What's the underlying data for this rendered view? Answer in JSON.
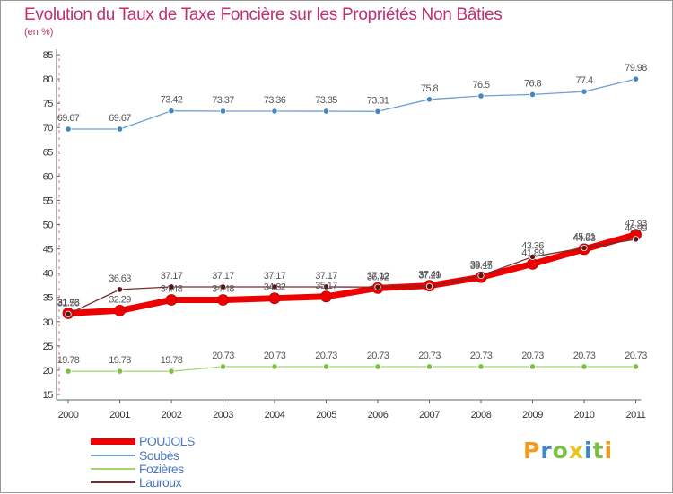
{
  "title": "Evolution du Taux de Taxe Foncière sur les Propriétés Non Bâties",
  "unit": "(en %)",
  "logo": {
    "text": "Proxiti"
  },
  "chart_data": {
    "type": "line",
    "x": [
      "2000",
      "2001",
      "2002",
      "2003",
      "2004",
      "2005",
      "2006",
      "2007",
      "2008",
      "2009",
      "2010",
      "2011"
    ],
    "ylim": [
      15,
      85
    ],
    "yticks": [
      15,
      20,
      25,
      30,
      35,
      40,
      45,
      50,
      55,
      60,
      65,
      70,
      75,
      80,
      85
    ],
    "grid": false,
    "legend": "bottom-left",
    "series": [
      {
        "name": "Soubès",
        "color": "#6d9fd2",
        "marker": "#3f88c8",
        "width": 1.3,
        "values": [
          69.67,
          69.67,
          73.42,
          73.37,
          73.36,
          73.35,
          73.31,
          75.8,
          76.5,
          76.8,
          77.4,
          79.98
        ],
        "labels": [
          "69.67",
          "69.67",
          "73.42",
          "73.37",
          "73.36",
          "73.35",
          "73.31",
          "75.8",
          "76.5",
          "76.8",
          "77.4",
          "79.98"
        ]
      },
      {
        "name": "Fozières",
        "color": "#a4d46a",
        "marker": "#7cc043",
        "width": 1.3,
        "values": [
          19.78,
          19.78,
          19.78,
          20.73,
          20.73,
          20.73,
          20.73,
          20.73,
          20.73,
          20.73,
          20.73,
          20.73
        ],
        "labels": [
          "19.78",
          "19.78",
          "19.78",
          "20.73",
          "20.73",
          "20.73",
          "20.73",
          "20.73",
          "20.73",
          "20.73",
          "20.73",
          "20.73"
        ]
      },
      {
        "name": "POUJOLS",
        "color": "#ee0000",
        "marker": "#ee0000",
        "width": 7,
        "values": [
          31.73,
          32.29,
          34.48,
          34.48,
          34.82,
          35.17,
          36.92,
          37.41,
          39.15,
          41.89,
          44.93,
          47.93
        ],
        "labels": [
          "31.73",
          "32.29",
          "34.48",
          "34.48",
          "34.82",
          "35.17",
          "36.92",
          "37.41",
          "39.15",
          "41.89",
          "44.93",
          "47.93"
        ]
      },
      {
        "name": "Lauroux",
        "color": "#7a2a2a",
        "marker": "#5a1414",
        "width": 1.3,
        "values": [
          31.56,
          36.63,
          37.17,
          37.17,
          37.17,
          37.17,
          37.12,
          37.29,
          39.47,
          43.36,
          45.21,
          46.99
        ],
        "labels": [
          "31.56",
          "36.63",
          "37.17",
          "37.17",
          "37.17",
          "37.17",
          "37.12",
          "37.29",
          "39.47",
          "43.36",
          "45.21",
          "46.99"
        ]
      }
    ]
  }
}
